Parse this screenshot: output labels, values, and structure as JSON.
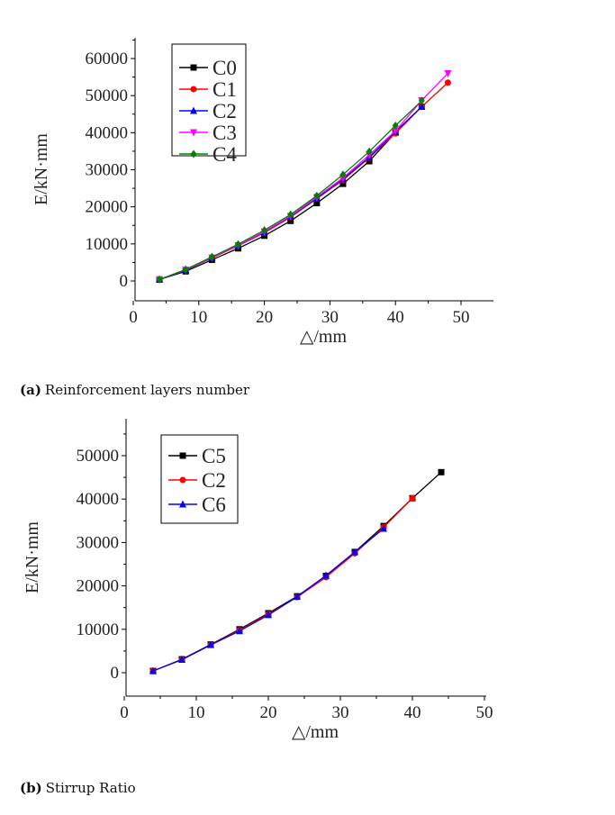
{
  "chart_data": [
    {
      "type": "line",
      "title": "",
      "xlabel": "△/mm",
      "ylabel": "E/kN·mm",
      "xlim": [
        0,
        50
      ],
      "ylim": [
        -5000,
        65000
      ],
      "xticks": [
        "0",
        "10",
        "20",
        "30",
        "40",
        "50"
      ],
      "yticks": [
        "0",
        "10000",
        "20000",
        "30000",
        "40000",
        "50000",
        "60000"
      ],
      "legend": "top-left",
      "caption_label": "(a)",
      "caption": "Reinforcement layers number",
      "series": [
        {
          "name": "C0",
          "color": "#000000",
          "marker": "square",
          "x": [
            4,
            8,
            12,
            16,
            20,
            24,
            28,
            32,
            36,
            40,
            44
          ],
          "values": [
            400,
            2600,
            5700,
            8800,
            12200,
            16200,
            21000,
            26200,
            32300,
            40000,
            47000
          ]
        },
        {
          "name": "C1",
          "color": "#ff0000",
          "marker": "circle",
          "x": [
            4,
            8,
            12,
            16,
            20,
            24,
            28,
            32,
            36,
            40,
            44,
            48
          ],
          "values": [
            400,
            2900,
            6200,
            9500,
            13000,
            17200,
            22200,
            27200,
            33200,
            39800,
            47000,
            53500
          ]
        },
        {
          "name": "C2",
          "color": "#0000ff",
          "marker": "triangle-up",
          "x": [
            4,
            8,
            12,
            16,
            20,
            24,
            28,
            32,
            36,
            40,
            44
          ],
          "values": [
            400,
            2900,
            6300,
            9600,
            13200,
            17400,
            22300,
            27500,
            33400,
            40300,
            47000
          ]
        },
        {
          "name": "C3",
          "color": "#ff00ff",
          "marker": "triangle-down",
          "x": [
            4,
            8,
            12,
            16,
            20,
            24,
            28,
            32,
            36,
            40,
            44,
            48
          ],
          "values": [
            400,
            3000,
            6300,
            9600,
            13300,
            17500,
            22600,
            27800,
            34000,
            40500,
            48700,
            56000
          ]
        },
        {
          "name": "C4",
          "color": "#008000",
          "marker": "diamond",
          "x": [
            4,
            8,
            12,
            16,
            20,
            24,
            28,
            32,
            36,
            40,
            44
          ],
          "values": [
            400,
            3100,
            6500,
            9900,
            13700,
            17900,
            23000,
            28700,
            34900,
            41900,
            48600
          ]
        }
      ]
    },
    {
      "type": "line",
      "title": "",
      "xlabel": "△/mm",
      "ylabel": "E/kN·mm",
      "xlim": [
        0,
        50
      ],
      "ylim": [
        -5000,
        55000
      ],
      "xticks": [
        "0",
        "10",
        "20",
        "30",
        "40",
        "50"
      ],
      "yticks": [
        "0",
        "10000",
        "20000",
        "30000",
        "40000",
        "50000"
      ],
      "legend": "top-left",
      "caption_label": "(b)",
      "caption": "Stirrup Ratio",
      "series": [
        {
          "name": "C5",
          "color": "#000000",
          "marker": "square",
          "x": [
            4,
            8,
            12,
            16,
            20,
            24,
            28,
            32,
            36,
            40,
            44
          ],
          "values": [
            400,
            3100,
            6500,
            10000,
            13700,
            17600,
            22300,
            27800,
            33800,
            40200,
            46200
          ]
        },
        {
          "name": "C2",
          "color": "#ff0000",
          "marker": "circle",
          "x": [
            4,
            8,
            12,
            16,
            20,
            24,
            28,
            32,
            36,
            40
          ],
          "values": [
            400,
            3000,
            6400,
            9800,
            13500,
            17400,
            22000,
            27500,
            33500,
            40200
          ]
        },
        {
          "name": "C6",
          "color": "#0000ff",
          "marker": "triangle-up",
          "x": [
            4,
            8,
            12,
            16,
            20,
            24,
            28,
            32,
            36
          ],
          "values": [
            400,
            3000,
            6400,
            9600,
            13300,
            17500,
            22400,
            27800,
            33200
          ]
        }
      ]
    }
  ]
}
